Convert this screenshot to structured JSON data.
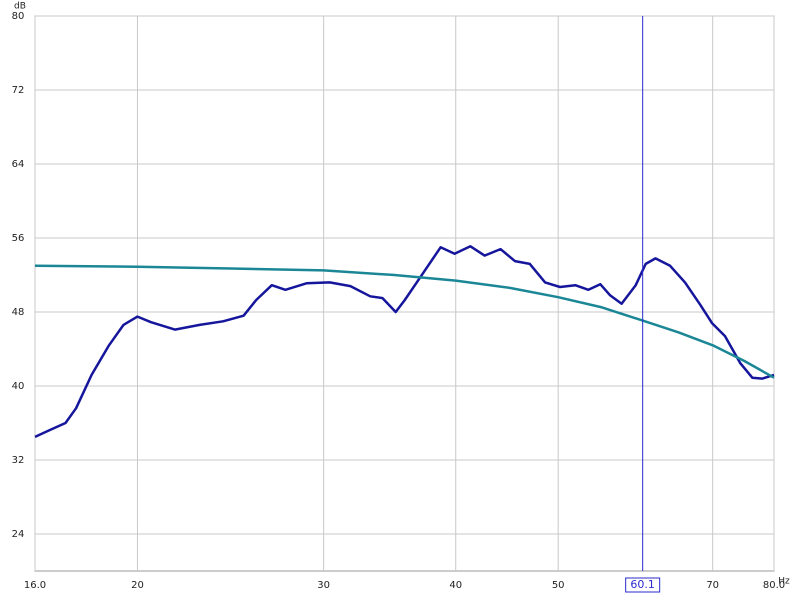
{
  "chart_data": {
    "type": "line",
    "x_unit": "Hz",
    "y_unit": "dB",
    "xscale": "log",
    "grid": true,
    "xlim": [
      16,
      80
    ],
    "ylim": [
      20,
      80
    ],
    "xticks": [
      {
        "value": 16,
        "label": "16.0"
      },
      20,
      30,
      40,
      50,
      70,
      {
        "value": 80,
        "label": "80.0"
      }
    ],
    "yticks": [
      24,
      32,
      40,
      48,
      56,
      64,
      72,
      80
    ],
    "cursor_x": 60.1,
    "cursor_color": "#2b2bd0",
    "series": [
      {
        "color": "#16169c",
        "x": [
          16,
          16.5,
          17.1,
          17.5,
          18.1,
          18.8,
          19.4,
          20.0,
          20.6,
          21.7,
          22.9,
          24.1,
          25.2,
          25.9,
          26.8,
          27.6,
          28.9,
          30.4,
          31.8,
          33.2,
          34.1,
          35.1,
          35.8,
          37.0,
          38.7,
          39.9,
          41.3,
          42.6,
          44.1,
          45.5,
          47.0,
          48.6,
          50.2,
          51.9,
          53.4,
          54.8,
          56.0,
          57.4,
          59.2,
          60.5,
          61.8,
          63.8,
          65.9,
          68.1,
          69.9,
          71.9,
          74.3,
          76.3,
          78.0,
          80
        ],
        "values": [
          34.5,
          35.2,
          36.0,
          37.6,
          41.2,
          44.4,
          46.6,
          47.5,
          46.9,
          46.1,
          46.6,
          47.0,
          47.6,
          49.3,
          50.9,
          50.4,
          51.1,
          51.2,
          50.8,
          49.7,
          49.5,
          48.0,
          49.3,
          51.7,
          55.0,
          54.3,
          55.1,
          54.1,
          54.8,
          53.5,
          53.2,
          51.2,
          50.7,
          50.9,
          50.4,
          51.0,
          49.8,
          48.9,
          50.9,
          53.2,
          53.8,
          53.0,
          51.2,
          48.8,
          46.8,
          45.4,
          42.5,
          40.9,
          40.8,
          41.2
        ]
      },
      {
        "color": "#1b8796",
        "x": [
          16,
          20,
          24.5,
          30,
          35,
          40,
          45,
          50,
          55,
          60,
          65,
          70,
          75,
          80
        ],
        "values": [
          53.0,
          52.9,
          52.7,
          52.5,
          52.0,
          51.4,
          50.6,
          49.6,
          48.5,
          47.1,
          45.8,
          44.4,
          42.7,
          40.9
        ]
      }
    ]
  }
}
